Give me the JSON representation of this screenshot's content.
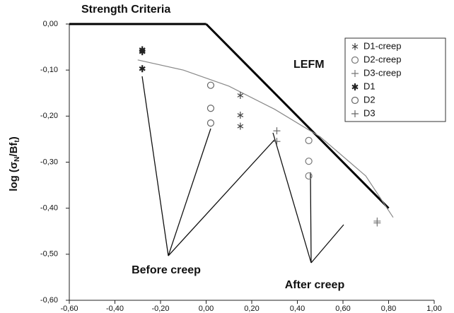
{
  "chart_data": {
    "type": "scatter",
    "title": "Strength Criteria",
    "ylabel_parts": [
      "log (σ",
      "N",
      "/Bf",
      "t",
      ")"
    ],
    "annotations": [
      "LEFM",
      "Before creep",
      "After creep"
    ],
    "xlim": [
      -0.6,
      1.0
    ],
    "xticks": [
      {
        "value": -0.6,
        "label": "-0,60"
      },
      {
        "value": -0.4,
        "label": "-0,40"
      },
      {
        "value": -0.2,
        "label": "-0,20"
      },
      {
        "value": 0,
        "label": "0,00"
      },
      {
        "value": 0.2,
        "label": "0,20"
      },
      {
        "value": 0.4,
        "label": "0,40"
      },
      {
        "value": 0.6,
        "label": "0,60"
      },
      {
        "value": 0.8,
        "label": "0,80"
      },
      {
        "value": 1.0,
        "label": "1,00"
      }
    ],
    "ylim": [
      -0.6,
      0
    ],
    "yticks": [
      {
        "value": 0,
        "label": "0,00"
      },
      {
        "value": -0.1,
        "label": "-0,10"
      },
      {
        "value": -0.2,
        "label": "-0,20"
      },
      {
        "value": -0.3,
        "label": "-0,30"
      },
      {
        "value": -0.4,
        "label": "-0,40"
      },
      {
        "value": -0.5,
        "label": "-0,50"
      },
      {
        "value": -0.6,
        "label": "-0,60"
      }
    ],
    "series": [
      {
        "name": "D1-creep",
        "marker": "asterisk",
        "color": "#444",
        "x": [
          0.15,
          0.15,
          0.15
        ],
        "values": [
          -0.155,
          -0.198,
          -0.222
        ]
      },
      {
        "name": "D2-creep",
        "marker": "circle",
        "color": "#777",
        "x": [
          0.45,
          0.45,
          0.45
        ],
        "values": [
          -0.253,
          -0.298,
          -0.33
        ]
      },
      {
        "name": "D3-creep",
        "marker": "plus",
        "color": "#777",
        "x": [
          0.75,
          0.75
        ],
        "values": [
          -0.428,
          -0.432
        ]
      },
      {
        "name": "D1",
        "marker": "asterisk-bold",
        "color": "#222",
        "x": [
          -0.28,
          -0.28,
          -0.28
        ],
        "values": [
          -0.056,
          -0.06,
          -0.097
        ]
      },
      {
        "name": "D2",
        "marker": "circle",
        "color": "#666",
        "x": [
          0.02,
          0.02,
          0.02
        ],
        "values": [
          -0.133,
          -0.183,
          -0.215
        ]
      },
      {
        "name": "D3",
        "marker": "plus",
        "color": "#666",
        "x": [
          0.31,
          0.31
        ],
        "values": [
          -0.232,
          -0.255
        ]
      }
    ],
    "lines": [
      {
        "x": [
          -0.6,
          0
        ],
        "values": [
          0,
          0
        ],
        "color": "#000",
        "width": 3
      },
      {
        "x": [
          0,
          0.8
        ],
        "values": [
          0,
          -0.4
        ],
        "color": "#000",
        "width": 3
      },
      {
        "x": [
          -0.3,
          -0.1,
          0.1,
          0.3,
          0.5,
          0.7,
          0.82
        ],
        "values": [
          -0.078,
          -0.1,
          -0.135,
          -0.185,
          -0.245,
          -0.33,
          -0.42
        ],
        "color": "#888",
        "width": 1.2
      }
    ]
  }
}
